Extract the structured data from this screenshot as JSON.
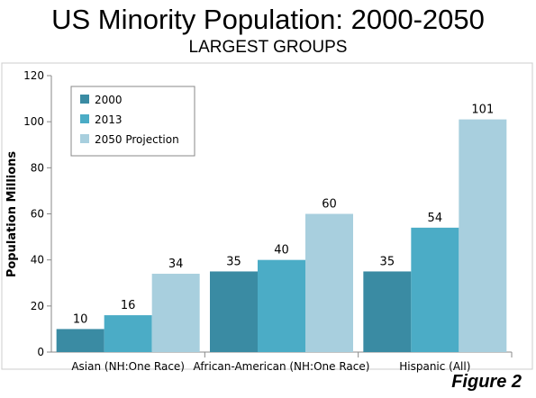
{
  "title": "US Minority Population: 2000-2050",
  "subtitle": "LARGEST GROUPS",
  "figure_label": "Figure 2",
  "chart_data": {
    "type": "bar",
    "ylabel": "Population Millions",
    "xlabel": "",
    "ylim": [
      0,
      120
    ],
    "yticks": [
      0,
      20,
      40,
      60,
      80,
      100,
      120
    ],
    "grid": false,
    "legend_position": "top-left",
    "categories": [
      "Asian (NH:One Race)",
      "African-American (NH:One Race)",
      "Hispanic (All)"
    ],
    "series": [
      {
        "name": "2000",
        "values": [
          10,
          35,
          35
        ],
        "color": "#3a8ba3"
      },
      {
        "name": "2013",
        "values": [
          16,
          40,
          54
        ],
        "color": "#4bacc6"
      },
      {
        "name": "2050 Projection",
        "values": [
          34,
          60,
          101
        ],
        "color": "#a8cfde"
      }
    ]
  }
}
